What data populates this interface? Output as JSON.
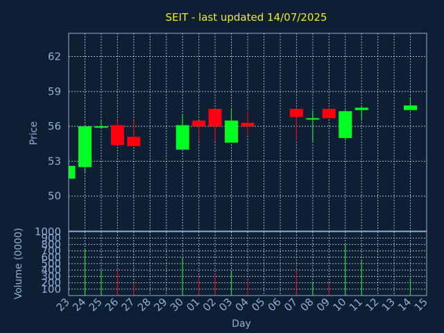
{
  "title": "SEIT - last updated 14/07/2025",
  "colors": {
    "background": "#0f1f33",
    "title": "#f0ea2a",
    "axis_text": "#8fb0d8",
    "up": "#00ff22",
    "down": "#ff0010",
    "grid": "#c8d2e0"
  },
  "chart_data": {
    "type": "candlestick",
    "title": "SEIT - last updated 14/07/2025",
    "xlabel": "Day",
    "days": [
      "23",
      "24",
      "25",
      "26",
      "27",
      "28",
      "29",
      "30",
      "01",
      "02",
      "03",
      "04",
      "05",
      "06",
      "07",
      "08",
      "09",
      "10",
      "11",
      "12",
      "13",
      "14",
      "15"
    ],
    "price_panel": {
      "ylabel": "Price",
      "ylim": [
        47.0,
        64.0
      ],
      "yticks": [
        50,
        53,
        56,
        59,
        62
      ],
      "grid": true
    },
    "volume_panel": {
      "ylabel": "Volume (0000)",
      "ylim": [
        0,
        1000
      ],
      "yticks": [
        100,
        200,
        300,
        400,
        500,
        600,
        700,
        800,
        900,
        1000
      ],
      "grid": true
    },
    "candles": [
      {
        "day": "23",
        "open": 51.5,
        "close": 52.6,
        "high": 52.6,
        "low": 51.5,
        "volume": 0
      },
      {
        "day": "24",
        "open": 52.5,
        "close": 56.0,
        "high": 56.0,
        "low": 52.0,
        "volume": 730
      },
      {
        "day": "25",
        "open": 55.9,
        "close": 56.0,
        "high": 56.5,
        "low": 55.8,
        "volume": 400
      },
      {
        "day": "26",
        "open": 56.1,
        "close": 54.4,
        "high": 56.5,
        "low": 54.4,
        "volume": 400
      },
      {
        "day": "27",
        "open": 55.1,
        "close": 54.3,
        "high": 56.5,
        "low": 54.3,
        "volume": 200
      },
      {
        "day": "30",
        "open": 54.0,
        "close": 56.1,
        "high": 57.0,
        "low": 54.0,
        "volume": 600
      },
      {
        "day": "01",
        "open": 56.5,
        "close": 56.0,
        "high": 56.5,
        "low": 54.7,
        "volume": 290
      },
      {
        "day": "02",
        "open": 57.5,
        "close": 56.0,
        "high": 57.5,
        "low": 54.7,
        "volume": 340
      },
      {
        "day": "03",
        "open": 54.6,
        "close": 56.5,
        "high": 57.5,
        "low": 54.6,
        "volume": 370
      },
      {
        "day": "04",
        "open": 56.3,
        "close": 56.0,
        "high": 57.3,
        "low": 55.2,
        "volume": 250
      },
      {
        "day": "07",
        "open": 57.5,
        "close": 56.8,
        "high": 57.5,
        "low": 54.8,
        "volume": 400
      },
      {
        "day": "08",
        "open": 56.6,
        "close": 56.7,
        "high": 57.4,
        "low": 54.7,
        "volume": 200
      },
      {
        "day": "09",
        "open": 57.5,
        "close": 56.7,
        "high": 57.5,
        "low": 56.7,
        "volume": 200
      },
      {
        "day": "10",
        "open": 55.0,
        "close": 57.3,
        "high": 57.4,
        "low": 54.8,
        "volume": 800
      },
      {
        "day": "11",
        "open": 57.4,
        "close": 57.6,
        "high": 57.7,
        "low": 56.5,
        "volume": 550
      },
      {
        "day": "14",
        "open": 57.4,
        "close": 57.8,
        "high": 58.4,
        "low": 57.4,
        "volume": 270
      }
    ]
  }
}
